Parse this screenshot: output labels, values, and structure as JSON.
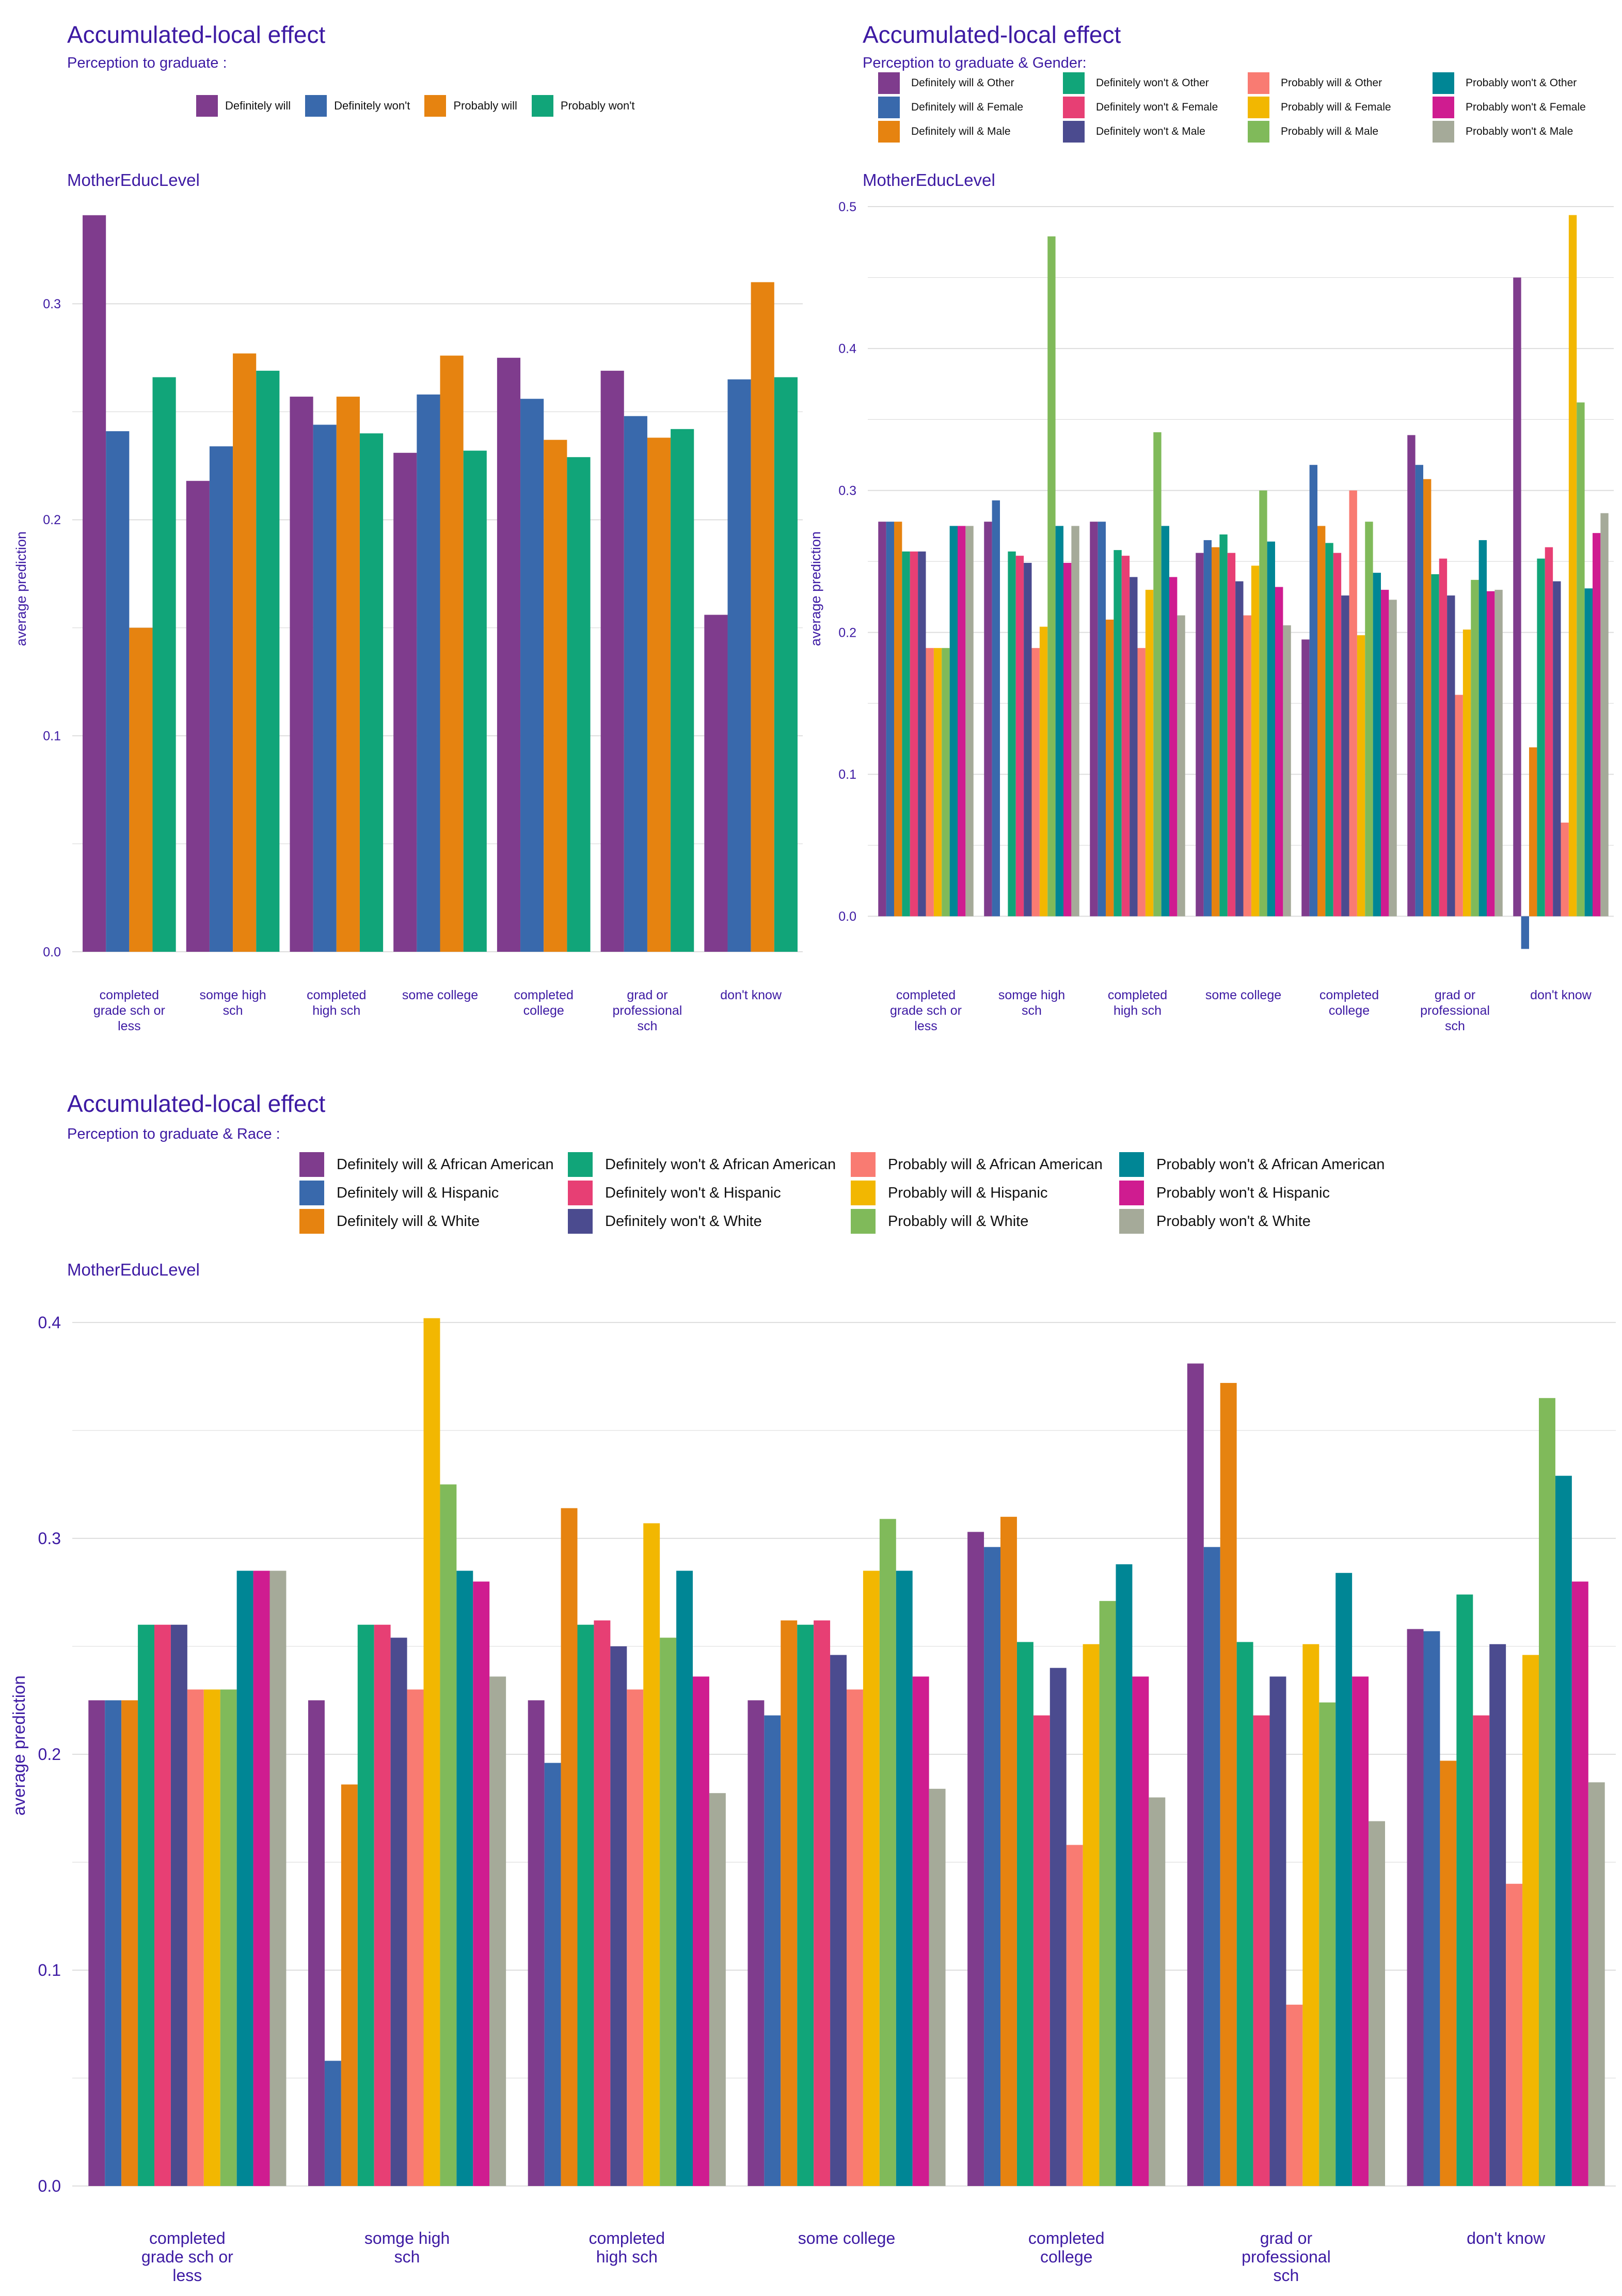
{
  "colors": {
    "text": "#3d1aa3",
    "grid": "#dddddd",
    "palette": {
      "Definitely will": "#7f3c8d",
      "Definitely won't": "#3969ac",
      "Probably will": "#e68310",
      "Probably won't": "#11a579",
      "Definitely will & Other": "#7f3c8d",
      "Definitely won't & Other": "#11a579",
      "Probably will & Other": "#f97b72",
      "Probably won't & Other": "#008695",
      "Definitely will & Female": "#3969ac",
      "Definitely won't & Female": "#e73f74",
      "Probably will & Female": "#f2b701",
      "Probably won't & Female": "#cf1c90",
      "Definitely will & Male": "#e68310",
      "Definitely won't & Male": "#4b4b8f",
      "Probably will & Male": "#80ba5a",
      "Probably won't & Male": "#a5aa99",
      "Definitely will & African American": "#7f3c8d",
      "Definitely won't & African American": "#11a579",
      "Probably will & African American": "#f97b72",
      "Probably won't & African American": "#008695",
      "Definitely will & Hispanic": "#3969ac",
      "Definitely won't & Hispanic": "#e73f74",
      "Probably will & Hispanic": "#f2b701",
      "Probably won't & Hispanic": "#cf1c90",
      "Definitely will & White": "#e68310",
      "Definitely won't & White": "#4b4b8f",
      "Probably will & White": "#80ba5a",
      "Probably won't & White": "#a5aa99"
    }
  },
  "chart_data": [
    {
      "id": "mother",
      "type": "bar",
      "title": "Accumulated-local effect",
      "subtitle": "Perception to graduate :",
      "facet_label": "MotherEducLevel",
      "ylabel": "average prediction",
      "xlabel": "",
      "ylim": [
        0,
        0.345
      ],
      "yticks": [
        "0.0",
        "0.1",
        "0.2",
        "0.3"
      ],
      "grid": true,
      "legend_position": "top",
      "legend_order": [
        "Definitely will",
        "Definitely won't",
        "Probably will",
        "Probably won't"
      ],
      "categories": [
        "completed\ngrade sch or\nless",
        "somge high\nsch",
        "completed\nhigh sch",
        "some college",
        "completed\ncollege",
        "grad or\nprofessional\nsch",
        "don't know"
      ],
      "series": [
        {
          "name": "Definitely will",
          "values": [
            0.341,
            0.218,
            0.257,
            0.231,
            0.275,
            0.269,
            0.156
          ]
        },
        {
          "name": "Definitely won't",
          "values": [
            0.241,
            0.234,
            0.244,
            0.258,
            0.256,
            0.248,
            0.265
          ]
        },
        {
          "name": "Probably will",
          "values": [
            0.15,
            0.277,
            0.257,
            0.276,
            0.237,
            0.238,
            0.31
          ]
        },
        {
          "name": "Probably won't",
          "values": [
            0.266,
            0.269,
            0.24,
            0.232,
            0.229,
            0.242,
            0.266
          ]
        }
      ]
    },
    {
      "id": "gender",
      "type": "bar",
      "title": "Accumulated-local effect",
      "subtitle": "Perception to graduate & Gender:",
      "facet_label": "MotherEducLevel",
      "ylabel": "average prediction",
      "xlabel": "",
      "ylim": [
        -0.025,
        0.5
      ],
      "yticks": [
        "0.0",
        "0.1",
        "0.2",
        "0.3",
        "0.4",
        "0.5"
      ],
      "grid": true,
      "legend_position": "top",
      "legend_order": [
        "Definitely will & Other",
        "Definitely won't & Other",
        "Probably will & Other",
        "Probably won't & Other",
        "Definitely will & Female",
        "Definitely won't & Female",
        "Probably will & Female",
        "Probably won't & Female",
        "Definitely will & Male",
        "Definitely won't & Male",
        "Probably will & Male",
        "Probably won't & Male"
      ],
      "categories": [
        "completed\ngrade sch or\nless",
        "somge high\nsch",
        "completed\nhigh sch",
        "some college",
        "completed\ncollege",
        "grad or\nprofessional\nsch",
        "don't know"
      ],
      "series": [
        {
          "name": "Definitely will & Other",
          "values": [
            0.278,
            0.278,
            0.278,
            0.256,
            0.195,
            0.339,
            0.45
          ]
        },
        {
          "name": "Definitely will & Female",
          "values": [
            0.278,
            0.293,
            0.278,
            0.265,
            0.318,
            0.318,
            -0.023
          ]
        },
        {
          "name": "Definitely will & Male",
          "values": [
            0.278,
            0.0,
            0.209,
            0.26,
            0.275,
            0.308,
            0.119
          ]
        },
        {
          "name": "Definitely won't & Other",
          "values": [
            0.257,
            0.257,
            0.258,
            0.269,
            0.263,
            0.241,
            0.252
          ]
        },
        {
          "name": "Definitely won't & Female",
          "values": [
            0.257,
            0.254,
            0.254,
            0.256,
            0.256,
            0.252,
            0.26
          ]
        },
        {
          "name": "Definitely won't & Male",
          "values": [
            0.257,
            0.249,
            0.239,
            0.236,
            0.226,
            0.226,
            0.236
          ]
        },
        {
          "name": "Probably will & Other",
          "values": [
            0.189,
            0.189,
            0.189,
            0.212,
            0.3,
            0.156,
            0.066
          ]
        },
        {
          "name": "Probably will & Female",
          "values": [
            0.189,
            0.204,
            0.23,
            0.247,
            0.198,
            0.202,
            0.494
          ]
        },
        {
          "name": "Probably will & Male",
          "values": [
            0.189,
            0.479,
            0.341,
            0.3,
            0.278,
            0.237,
            0.362
          ]
        },
        {
          "name": "Probably won't & Other",
          "values": [
            0.275,
            0.275,
            0.275,
            0.264,
            0.242,
            0.265,
            0.231
          ]
        },
        {
          "name": "Probably won't & Female",
          "values": [
            0.275,
            0.249,
            0.239,
            0.232,
            0.23,
            0.229,
            0.27
          ]
        },
        {
          "name": "Probably won't & Male",
          "values": [
            0.275,
            0.275,
            0.212,
            0.205,
            0.223,
            0.23,
            0.284
          ]
        }
      ]
    },
    {
      "id": "race",
      "type": "bar",
      "title": "Accumulated-local effect",
      "subtitle": "Perception to graduate & Race :",
      "facet_label": "MotherEducLevel",
      "ylabel": "average prediction",
      "xlabel": "",
      "ylim": [
        0,
        0.405
      ],
      "yticks": [
        "0.0",
        "0.1",
        "0.2",
        "0.3",
        "0.4"
      ],
      "grid": true,
      "legend_position": "top",
      "legend_order": [
        "Definitely will & African American",
        "Definitely won't & African American",
        "Probably will & African American",
        "Probably won't & African American",
        "Definitely will & Hispanic",
        "Definitely won't & Hispanic",
        "Probably will & Hispanic",
        "Probably won't & Hispanic",
        "Definitely will & White",
        "Definitely won't & White",
        "Probably will & White",
        "Probably won't & White"
      ],
      "categories": [
        "completed\ngrade sch or\nless",
        "somge high\nsch",
        "completed\nhigh sch",
        "some college",
        "completed\ncollege",
        "grad or\nprofessional\nsch",
        "don't know"
      ],
      "series": [
        {
          "name": "Definitely will & African American",
          "values": [
            0.225,
            0.225,
            0.225,
            0.225,
            0.303,
            0.381,
            0.258
          ]
        },
        {
          "name": "Definitely will & Hispanic",
          "values": [
            0.225,
            0.058,
            0.196,
            0.218,
            0.296,
            0.296,
            0.257
          ]
        },
        {
          "name": "Definitely will & White",
          "values": [
            0.225,
            0.186,
            0.314,
            0.262,
            0.31,
            0.372,
            0.197
          ]
        },
        {
          "name": "Definitely won't & African American",
          "values": [
            0.26,
            0.26,
            0.26,
            0.26,
            0.252,
            0.252,
            0.274
          ]
        },
        {
          "name": "Definitely won't & Hispanic",
          "values": [
            0.26,
            0.26,
            0.262,
            0.262,
            0.218,
            0.218,
            0.218
          ]
        },
        {
          "name": "Definitely won't & White",
          "values": [
            0.26,
            0.254,
            0.25,
            0.246,
            0.24,
            0.236,
            0.251
          ]
        },
        {
          "name": "Probably will & African American",
          "values": [
            0.23,
            0.23,
            0.23,
            0.23,
            0.158,
            0.084,
            0.14
          ]
        },
        {
          "name": "Probably will & Hispanic",
          "values": [
            0.23,
            0.402,
            0.307,
            0.285,
            0.251,
            0.251,
            0.246
          ]
        },
        {
          "name": "Probably will & White",
          "values": [
            0.23,
            0.325,
            0.254,
            0.309,
            0.271,
            0.224,
            0.365
          ]
        },
        {
          "name": "Probably won't & African American",
          "values": [
            0.285,
            0.285,
            0.285,
            0.285,
            0.288,
            0.284,
            0.329
          ]
        },
        {
          "name": "Probably won't & Hispanic",
          "values": [
            0.285,
            0.28,
            0.236,
            0.236,
            0.236,
            0.236,
            0.28
          ]
        },
        {
          "name": "Probably won't & White",
          "values": [
            0.285,
            0.236,
            0.182,
            0.184,
            0.18,
            0.169,
            0.187
          ]
        }
      ]
    }
  ]
}
